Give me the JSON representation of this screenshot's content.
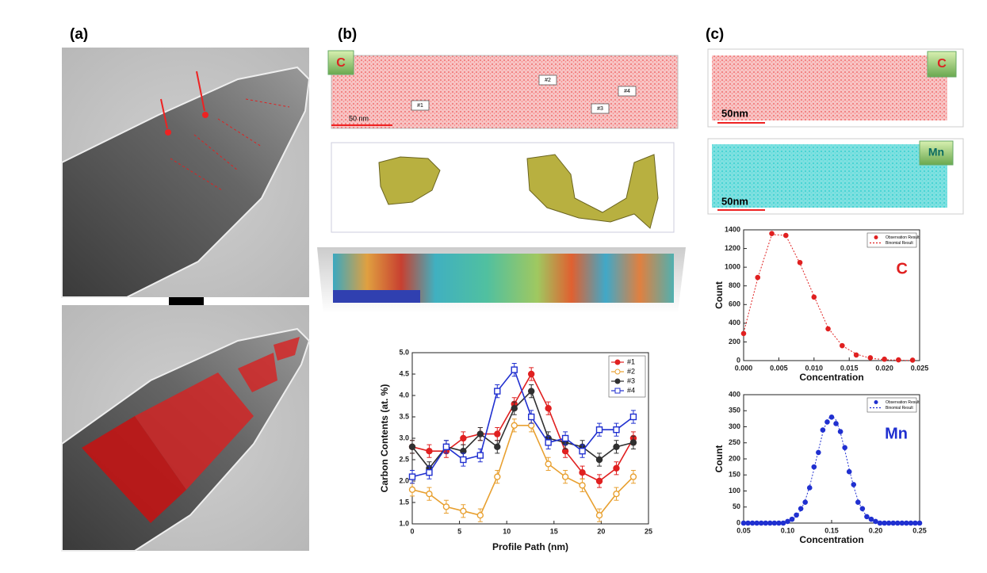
{
  "panel_a": {
    "label": "(a)"
  },
  "panel_b": {
    "label": "(b)",
    "map_element": "C",
    "markers": [
      "#1",
      "#2",
      "#3",
      "#4"
    ],
    "scale_bar": "50 nm"
  },
  "panel_c": {
    "label": "(c)",
    "maps": [
      {
        "element": "C",
        "scale_bar": "50nm"
      },
      {
        "element": "Mn",
        "scale_bar": "50nm"
      }
    ]
  },
  "chart_data": [
    {
      "type": "line",
      "x_label": "Profile Path (nm)",
      "y_label": "Carbon Contents (at. %)",
      "x": [
        0,
        1.8,
        3.6,
        5.4,
        7.2,
        9.0,
        10.8,
        12.6,
        14.4,
        16.2,
        18.0,
        19.8,
        21.6,
        23.4
      ],
      "series": [
        {
          "name": "#1",
          "color": "#e02020",
          "marker": "circle-filled",
          "values": [
            2.8,
            2.7,
            2.7,
            3.0,
            3.1,
            3.1,
            3.8,
            4.5,
            3.7,
            2.7,
            2.2,
            2.0,
            2.3,
            3.0
          ],
          "errors": [
            0.15,
            0.15,
            0.15,
            0.15,
            0.15,
            0.15,
            0.15,
            0.15,
            0.15,
            0.15,
            0.15,
            0.15,
            0.15,
            0.15
          ]
        },
        {
          "name": "#2",
          "color": "#e8a030",
          "marker": "circle-open",
          "values": [
            1.8,
            1.7,
            1.4,
            1.3,
            1.2,
            2.1,
            3.3,
            3.3,
            2.4,
            2.1,
            1.9,
            1.2,
            1.7,
            2.1
          ],
          "errors": [
            0.15,
            0.15,
            0.15,
            0.15,
            0.15,
            0.15,
            0.15,
            0.15,
            0.15,
            0.15,
            0.15,
            0.15,
            0.15,
            0.15
          ]
        },
        {
          "name": "#3",
          "color": "#303030",
          "marker": "circle-filled",
          "values": [
            2.8,
            2.3,
            2.8,
            2.7,
            3.1,
            2.8,
            3.7,
            4.1,
            3.0,
            2.9,
            2.8,
            2.5,
            2.8,
            2.9
          ],
          "errors": [
            0.15,
            0.15,
            0.15,
            0.15,
            0.15,
            0.15,
            0.15,
            0.15,
            0.15,
            0.15,
            0.15,
            0.15,
            0.15,
            0.15
          ]
        },
        {
          "name": "#4",
          "color": "#2030d0",
          "marker": "square-open",
          "values": [
            2.1,
            2.2,
            2.8,
            2.5,
            2.6,
            4.1,
            4.6,
            3.5,
            2.9,
            3.0,
            2.7,
            3.2,
            3.2,
            3.5
          ],
          "errors": [
            0.15,
            0.15,
            0.15,
            0.15,
            0.15,
            0.15,
            0.15,
            0.15,
            0.15,
            0.15,
            0.15,
            0.15,
            0.15,
            0.15
          ]
        }
      ],
      "xlim": [
        0,
        25
      ],
      "xticks": [
        0,
        5,
        10,
        15,
        20,
        25
      ],
      "ylim": [
        1,
        5
      ],
      "yticks": [
        {
          "value": 1,
          "label": "1.0"
        },
        1.5,
        {
          "value": 2,
          "label": "2.0"
        },
        2.5,
        {
          "value": 3,
          "label": "3.0"
        },
        3.5,
        {
          "value": 4,
          "label": "4.0"
        },
        4.5,
        {
          "value": 5,
          "label": "5.0"
        }
      ]
    },
    {
      "type": "scatter",
      "x_label": "Concentration",
      "y_label": "Count",
      "annotation": "C",
      "annotation_color": "#e02020",
      "x": [
        0,
        0.002,
        0.004,
        0.006,
        0.008,
        0.01,
        0.012,
        0.014,
        0.016,
        0.018,
        0.02,
        0.022,
        0.024
      ],
      "series": [
        {
          "name": "Observation Result",
          "color": "#e02020",
          "style": "markers",
          "values": [
            290,
            890,
            1360,
            1340,
            1050,
            680,
            340,
            160,
            60,
            30,
            15,
            8,
            5
          ]
        },
        {
          "name": "Binomial Result",
          "color": "#e02020",
          "style": "dashed-line",
          "values": [
            300,
            880,
            1350,
            1340,
            1040,
            690,
            350,
            160,
            70,
            25,
            10,
            4,
            1
          ]
        }
      ],
      "xlim": [
        0,
        0.025
      ],
      "xticks": [
        {
          "value": 0,
          "label": "0.000"
        },
        0.005,
        {
          "value": 0.01,
          "label": "0.010"
        },
        0.015,
        {
          "value": 0.02,
          "label": "0.020"
        },
        0.025
      ],
      "ylim": [
        0,
        1400
      ],
      "yticks": [
        0,
        200,
        400,
        600,
        800,
        1000,
        1200,
        1400
      ]
    },
    {
      "type": "scatter",
      "x_label": "Concentration",
      "y_label": "Count",
      "annotation": "Mn",
      "annotation_color": "#2030d0",
      "x": [
        0.05,
        0.055,
        0.06,
        0.065,
        0.07,
        0.075,
        0.08,
        0.085,
        0.09,
        0.095,
        0.1,
        0.105,
        0.11,
        0.115,
        0.12,
        0.125,
        0.13,
        0.135,
        0.14,
        0.145,
        0.15,
        0.155,
        0.16,
        0.165,
        0.17,
        0.175,
        0.18,
        0.185,
        0.19,
        0.195,
        0.2,
        0.205,
        0.21,
        0.215,
        0.22,
        0.225,
        0.23,
        0.235,
        0.24,
        0.245,
        0.25
      ],
      "series": [
        {
          "name": "Observation Result",
          "color": "#2030d0",
          "style": "markers",
          "values": [
            0,
            0,
            0,
            0,
            0,
            0,
            0,
            0,
            0,
            0,
            5,
            12,
            25,
            45,
            65,
            110,
            175,
            220,
            290,
            315,
            330,
            310,
            285,
            235,
            160,
            120,
            65,
            45,
            20,
            12,
            5,
            0,
            0,
            0,
            0,
            0,
            0,
            0,
            0,
            0,
            0
          ]
        },
        {
          "name": "Binomial Result",
          "color": "#2030d0",
          "style": "dashed-line",
          "values": [
            0,
            0,
            0,
            0,
            0,
            0,
            0,
            0,
            0,
            0,
            4,
            10,
            21,
            40,
            71,
            114,
            168,
            227,
            282,
            321,
            335,
            321,
            282,
            227,
            168,
            114,
            71,
            40,
            21,
            10,
            4,
            0,
            0,
            0,
            0,
            0,
            0,
            0,
            0,
            0,
            0
          ]
        }
      ],
      "xlim": [
        0.05,
        0.25
      ],
      "xticks": [
        0.05,
        {
          "value": 0.1,
          "label": "0.10"
        },
        0.15,
        {
          "value": 0.2,
          "label": "0.20"
        },
        0.25
      ],
      "ylim": [
        0,
        400
      ],
      "yticks": [
        0,
        50,
        100,
        150,
        200,
        250,
        300,
        350,
        400
      ]
    }
  ]
}
